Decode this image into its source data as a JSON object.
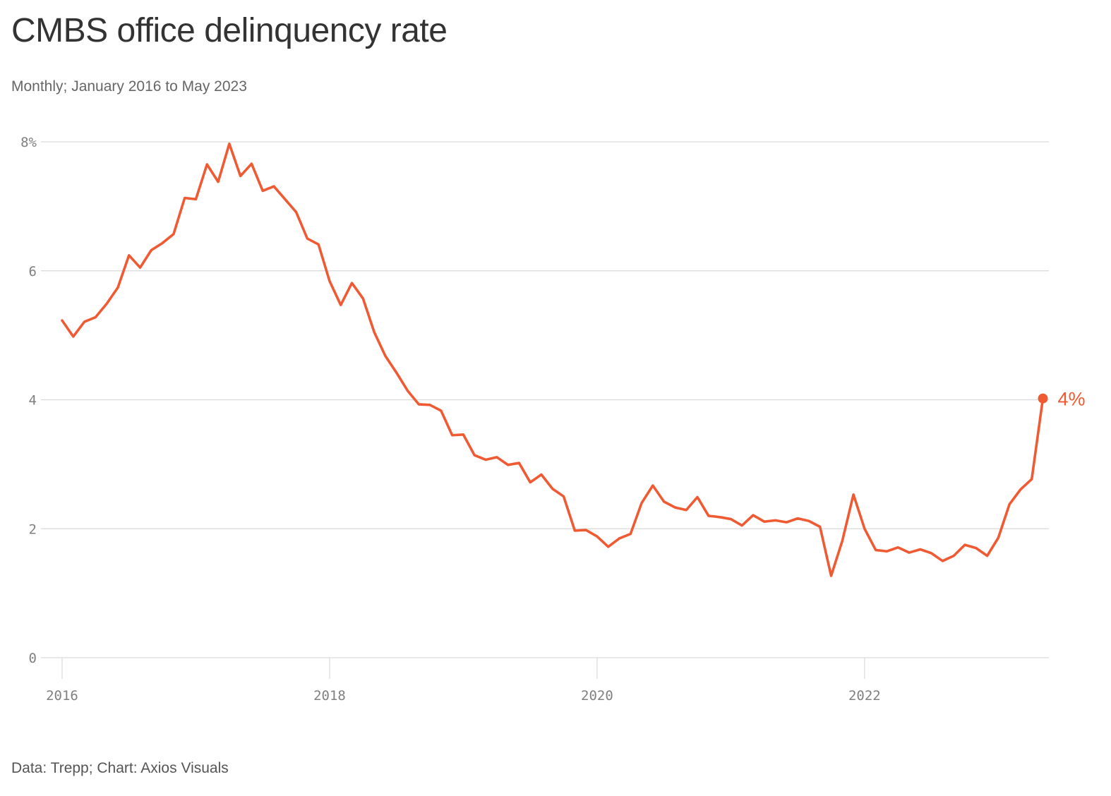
{
  "title": "CMBS office delinquency rate",
  "subtitle": "Monthly; January 2016 to May 2023",
  "footer": "Data: Trepp; Chart: Axios Visuals",
  "colors": {
    "line": "#f05a33",
    "grid": "#d9d9d9",
    "tick_text": "#808080"
  },
  "chart_data": {
    "type": "line",
    "title": "CMBS office delinquency rate",
    "xlabel": "",
    "ylabel": "",
    "xlim": [
      "2016-01",
      "2023-05"
    ],
    "ylim": [
      0,
      8
    ],
    "grid": true,
    "y_ticks": [
      {
        "value": 0,
        "label": "0"
      },
      {
        "value": 2,
        "label": "2"
      },
      {
        "value": 4,
        "label": "4"
      },
      {
        "value": 6,
        "label": "6"
      },
      {
        "value": 8,
        "label": "8%"
      }
    ],
    "x_ticks": [
      {
        "value": "2016-01",
        "label": "2016"
      },
      {
        "value": "2018-01",
        "label": "2018"
      },
      {
        "value": "2020-01",
        "label": "2020"
      },
      {
        "value": "2022-01",
        "label": "2022"
      }
    ],
    "end_label": "4%",
    "x": [
      "2016-01",
      "2016-02",
      "2016-03",
      "2016-04",
      "2016-05",
      "2016-06",
      "2016-07",
      "2016-08",
      "2016-09",
      "2016-10",
      "2016-11",
      "2016-12",
      "2017-01",
      "2017-02",
      "2017-03",
      "2017-04",
      "2017-05",
      "2017-06",
      "2017-07",
      "2017-08",
      "2017-09",
      "2017-10",
      "2017-11",
      "2017-12",
      "2018-01",
      "2018-02",
      "2018-03",
      "2018-04",
      "2018-05",
      "2018-06",
      "2018-07",
      "2018-08",
      "2018-09",
      "2018-10",
      "2018-11",
      "2018-12",
      "2019-01",
      "2019-02",
      "2019-03",
      "2019-04",
      "2019-05",
      "2019-06",
      "2019-07",
      "2019-08",
      "2019-09",
      "2019-10",
      "2019-11",
      "2019-12",
      "2020-01",
      "2020-02",
      "2020-03",
      "2020-04",
      "2020-05",
      "2020-06",
      "2020-07",
      "2020-08",
      "2020-09",
      "2020-10",
      "2020-11",
      "2020-12",
      "2021-01",
      "2021-02",
      "2021-03",
      "2021-04",
      "2021-05",
      "2021-06",
      "2021-07",
      "2021-08",
      "2021-09",
      "2021-10",
      "2021-11",
      "2021-12",
      "2022-01",
      "2022-02",
      "2022-03",
      "2022-04",
      "2022-05",
      "2022-06",
      "2022-07",
      "2022-08",
      "2022-09",
      "2022-10",
      "2022-11",
      "2022-12",
      "2023-01",
      "2023-02",
      "2023-03",
      "2023-04",
      "2023-05"
    ],
    "series": [
      {
        "values": [
          5.23,
          4.98,
          5.21,
          5.28,
          5.49,
          5.74,
          6.24,
          6.05,
          6.32,
          6.43,
          6.57,
          7.13,
          7.11,
          7.65,
          7.38,
          7.97,
          7.47,
          7.66,
          7.24,
          7.31,
          7.11,
          6.91,
          6.5,
          6.41,
          5.84,
          5.47,
          5.81,
          5.57,
          5.05,
          4.68,
          4.42,
          4.14,
          3.93,
          3.92,
          3.83,
          3.45,
          3.46,
          3.14,
          3.07,
          3.11,
          2.99,
          3.02,
          2.72,
          2.84,
          2.62,
          2.5,
          1.97,
          1.98,
          1.88,
          1.72,
          1.85,
          1.92,
          2.4,
          2.67,
          2.42,
          2.33,
          2.29,
          2.49,
          2.2,
          2.18,
          2.15,
          2.05,
          2.21,
          2.11,
          2.13,
          2.1,
          2.16,
          2.12,
          2.03,
          1.27,
          1.81,
          2.53,
          2.0,
          1.67,
          1.65,
          1.71,
          1.63,
          1.68,
          1.62,
          1.5,
          1.58,
          1.75,
          1.7,
          1.58,
          1.86,
          2.38,
          2.61,
          2.77,
          4.02
        ]
      }
    ]
  }
}
